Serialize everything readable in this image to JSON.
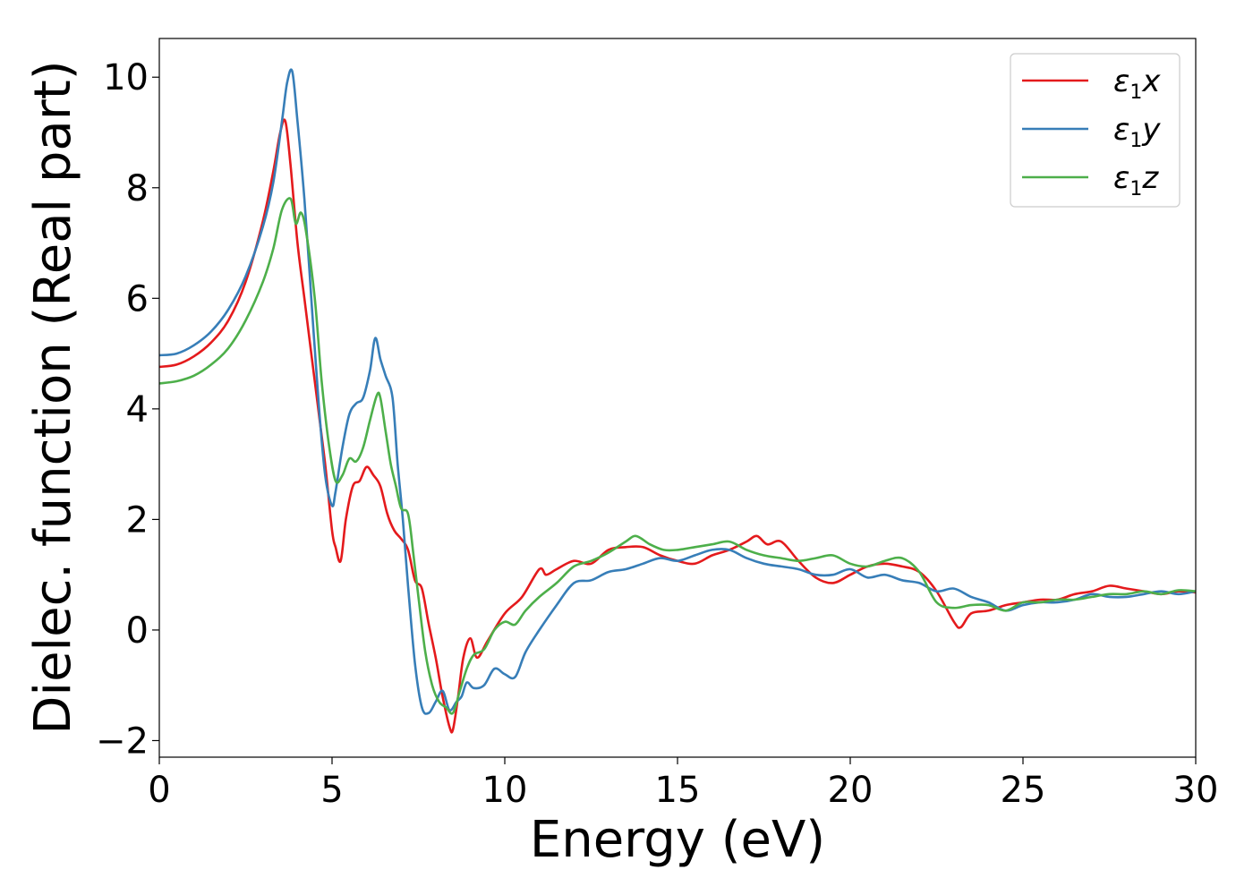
{
  "chart_data": {
    "type": "line",
    "title": "",
    "xlabel": "Energy (eV)",
    "ylabel": "Dielec. function (Real part)",
    "xlim": [
      0,
      30
    ],
    "ylim": [
      -2.3,
      10.7
    ],
    "xticks": [
      0,
      5,
      10,
      15,
      20,
      25,
      30
    ],
    "xtick_labels": [
      "0",
      "5",
      "10",
      "15",
      "20",
      "25",
      "30"
    ],
    "yticks": [
      -2,
      0,
      2,
      4,
      6,
      8,
      10
    ],
    "ytick_labels": [
      "−2",
      "0",
      "2",
      "4",
      "6",
      "8",
      "10"
    ],
    "grid": false,
    "legend_position": "top-right",
    "series": [
      {
        "name": "ε1x",
        "name_base": "ε",
        "name_sub": "1",
        "name_tail": "x",
        "color": "#e41a1c",
        "x": [
          0,
          0.5,
          1,
          1.5,
          2,
          2.5,
          3,
          3.3,
          3.5,
          3.65,
          3.8,
          4.0,
          4.2,
          4.4,
          4.6,
          4.8,
          5.0,
          5.1,
          5.25,
          5.4,
          5.6,
          5.8,
          6.0,
          6.2,
          6.4,
          6.6,
          6.8,
          7.0,
          7.2,
          7.4,
          7.6,
          7.8,
          8.0,
          8.2,
          8.4,
          8.5,
          8.65,
          8.8,
          9.0,
          9.2,
          9.5,
          10.0,
          10.5,
          11.0,
          11.2,
          11.5,
          12.0,
          12.5,
          13.0,
          13.5,
          14.0,
          14.5,
          15.0,
          15.5,
          16.0,
          16.5,
          17.0,
          17.3,
          17.6,
          18.0,
          18.5,
          19.0,
          19.5,
          20.0,
          20.5,
          21.0,
          21.5,
          22.0,
          22.5,
          23.0,
          23.2,
          23.5,
          24.0,
          24.5,
          25.0,
          25.5,
          26.0,
          26.5,
          27.0,
          27.5,
          28.0,
          28.5,
          29.0,
          29.5,
          30.0
        ],
        "y": [
          4.76,
          4.8,
          4.95,
          5.2,
          5.6,
          6.3,
          7.4,
          8.3,
          9.0,
          9.2,
          8.4,
          7.0,
          6.0,
          5.0,
          4.0,
          3.0,
          1.8,
          1.5,
          1.25,
          2.0,
          2.6,
          2.7,
          2.95,
          2.8,
          2.6,
          2.1,
          1.8,
          1.65,
          1.45,
          0.9,
          0.75,
          0.1,
          -0.5,
          -1.2,
          -1.75,
          -1.8,
          -1.2,
          -0.5,
          -0.15,
          -0.5,
          -0.2,
          0.3,
          0.6,
          1.1,
          1.0,
          1.1,
          1.25,
          1.2,
          1.45,
          1.5,
          1.5,
          1.35,
          1.25,
          1.2,
          1.35,
          1.45,
          1.6,
          1.7,
          1.55,
          1.6,
          1.25,
          0.95,
          0.85,
          1.0,
          1.15,
          1.2,
          1.15,
          1.05,
          0.7,
          0.15,
          0.05,
          0.3,
          0.35,
          0.45,
          0.5,
          0.55,
          0.55,
          0.65,
          0.7,
          0.8,
          0.75,
          0.7,
          0.65,
          0.7,
          0.68
        ]
      },
      {
        "name": "ε1y",
        "name_base": "ε",
        "name_sub": "1",
        "name_tail": "y",
        "color": "#377eb8",
        "x": [
          0,
          0.5,
          1,
          1.5,
          2,
          2.5,
          3,
          3.3,
          3.55,
          3.7,
          3.85,
          4.0,
          4.2,
          4.4,
          4.6,
          4.8,
          5.0,
          5.1,
          5.3,
          5.5,
          5.7,
          5.9,
          6.1,
          6.25,
          6.4,
          6.55,
          6.75,
          6.9,
          7.05,
          7.2,
          7.4,
          7.6,
          7.8,
          8.0,
          8.2,
          8.4,
          8.6,
          8.75,
          8.9,
          9.1,
          9.4,
          9.7,
          10.0,
          10.3,
          10.6,
          11.0,
          11.5,
          12.0,
          12.5,
          13.0,
          13.5,
          14.0,
          14.5,
          15.0,
          15.5,
          16.0,
          16.5,
          17.0,
          17.5,
          18.0,
          18.5,
          19.0,
          19.5,
          20.0,
          20.5,
          21.0,
          21.5,
          22.0,
          22.5,
          23.0,
          23.5,
          24.0,
          24.5,
          25.0,
          25.5,
          26.0,
          26.5,
          27.0,
          27.5,
          28.0,
          28.5,
          29.0,
          29.5,
          30.0
        ],
        "y": [
          4.97,
          5.0,
          5.15,
          5.4,
          5.8,
          6.4,
          7.3,
          8.1,
          9.2,
          9.9,
          10.1,
          9.2,
          7.8,
          6.0,
          4.2,
          2.8,
          2.25,
          2.5,
          3.3,
          3.9,
          4.1,
          4.2,
          4.7,
          5.28,
          4.9,
          4.6,
          4.2,
          3.0,
          2.0,
          0.8,
          -0.6,
          -1.4,
          -1.5,
          -1.3,
          -1.1,
          -1.45,
          -1.3,
          -1.2,
          -0.95,
          -1.05,
          -1.0,
          -0.7,
          -0.8,
          -0.85,
          -0.4,
          0.0,
          0.45,
          0.85,
          0.9,
          1.05,
          1.1,
          1.2,
          1.3,
          1.25,
          1.35,
          1.45,
          1.45,
          1.3,
          1.2,
          1.15,
          1.1,
          1.0,
          1.0,
          1.1,
          0.95,
          1.0,
          0.9,
          0.85,
          0.7,
          0.75,
          0.6,
          0.5,
          0.35,
          0.45,
          0.5,
          0.5,
          0.55,
          0.65,
          0.6,
          0.6,
          0.65,
          0.7,
          0.65,
          0.7
        ]
      },
      {
        "name": "ε1z",
        "name_base": "ε",
        "name_sub": "1",
        "name_tail": "z",
        "color": "#4daf4a",
        "x": [
          0,
          0.5,
          1,
          1.5,
          2,
          2.5,
          3,
          3.3,
          3.55,
          3.8,
          3.95,
          4.1,
          4.25,
          4.5,
          4.7,
          4.9,
          5.1,
          5.3,
          5.5,
          5.7,
          5.9,
          6.1,
          6.3,
          6.4,
          6.55,
          6.7,
          6.85,
          7.0,
          7.2,
          7.35,
          7.5,
          7.7,
          7.9,
          8.1,
          8.3,
          8.5,
          8.7,
          8.9,
          9.1,
          9.4,
          9.7,
          10.0,
          10.3,
          10.6,
          11.0,
          11.5,
          12.0,
          12.5,
          13.0,
          13.5,
          13.8,
          14.2,
          14.6,
          15.0,
          15.5,
          16.0,
          16.5,
          17.0,
          17.5,
          18.0,
          18.5,
          19.0,
          19.5,
          20.0,
          20.5,
          21.0,
          21.5,
          22.0,
          22.5,
          23.0,
          23.5,
          24.0,
          24.5,
          25.0,
          25.5,
          26.0,
          26.5,
          27.0,
          27.5,
          28.0,
          28.5,
          29.0,
          29.5,
          30.0
        ],
        "y": [
          4.46,
          4.5,
          4.6,
          4.8,
          5.1,
          5.6,
          6.3,
          6.9,
          7.6,
          7.8,
          7.35,
          7.55,
          7.2,
          6.0,
          4.5,
          3.4,
          2.7,
          2.8,
          3.1,
          3.05,
          3.3,
          3.8,
          4.25,
          4.2,
          3.6,
          3.0,
          2.6,
          2.2,
          2.1,
          1.4,
          0.6,
          -0.4,
          -1.0,
          -1.3,
          -1.4,
          -1.5,
          -1.1,
          -0.7,
          -0.45,
          -0.35,
          0.0,
          0.15,
          0.1,
          0.35,
          0.6,
          0.85,
          1.15,
          1.25,
          1.4,
          1.6,
          1.7,
          1.55,
          1.45,
          1.45,
          1.5,
          1.55,
          1.6,
          1.45,
          1.35,
          1.3,
          1.25,
          1.3,
          1.35,
          1.2,
          1.15,
          1.25,
          1.3,
          1.05,
          0.5,
          0.4,
          0.45,
          0.45,
          0.35,
          0.5,
          0.5,
          0.55,
          0.55,
          0.6,
          0.65,
          0.65,
          0.7,
          0.65,
          0.72,
          0.7
        ]
      }
    ]
  }
}
